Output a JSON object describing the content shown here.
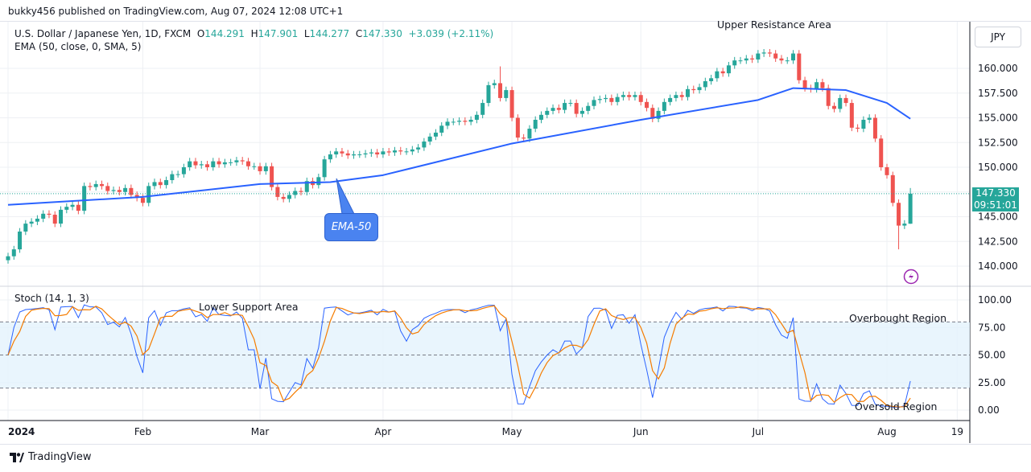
{
  "published": "bukky456 published on TradingView.com, Aug 07, 2024 12:08 UTC+1",
  "legend": {
    "symbol": "U.S. Dollar / Japanese Yen, 1D, FXCM",
    "open_label": "O",
    "open": "144.291",
    "high_label": "H",
    "high": "147.901",
    "low_label": "L",
    "low": "144.277",
    "close_label": "C",
    "close": "147.330",
    "change": "+3.039 (+2.11%)",
    "ema": "EMA (50, close, 0, SMA, 5)",
    "stoch": "Stoch (14, 1, 3)"
  },
  "currency": "JPY",
  "last_price": {
    "price": "147.330",
    "countdown": "09:51:01"
  },
  "annotations": {
    "upper": "Upper Resistance Area",
    "lower": "Lower Support Area",
    "overbought": "Overbought Region",
    "oversold": "Oversold Region",
    "ema_callout": "EMA-50"
  },
  "footer": "TradingView",
  "colors": {
    "up": "#26a69a",
    "down": "#ef5350",
    "ema": "#2962ff",
    "stoch_k": "#2962ff",
    "stoch_d": "#f57c00",
    "band": "#e3f2fd"
  },
  "chart_data": {
    "type": "candlestick",
    "price_axis": {
      "ticks": [
        "160.000",
        "157.500",
        "155.000",
        "152.500",
        "150.000",
        "147.500",
        "145.000",
        "142.500",
        "140.000"
      ],
      "range": [
        138.5,
        162.5
      ]
    },
    "stoch_axis": {
      "ticks": [
        "100.00",
        "75.00",
        "50.00",
        "25.00",
        "0.00"
      ],
      "levels": [
        80,
        50,
        20
      ]
    },
    "time_ticks": [
      {
        "label": "2024",
        "index": 0
      },
      {
        "label": "Feb",
        "index": 23
      },
      {
        "label": "Mar",
        "index": 43
      },
      {
        "label": "Apr",
        "index": 64
      },
      {
        "label": "May",
        "index": 86
      },
      {
        "label": "Jun",
        "index": 108
      },
      {
        "label": "Jul",
        "index": 128
      },
      {
        "label": "Aug",
        "index": 150
      },
      {
        "label": "19",
        "index": 162
      }
    ],
    "closes": [
      141.0,
      141.7,
      143.5,
      144.3,
      144.5,
      144.8,
      145.3,
      145.2,
      144.3,
      145.7,
      146.0,
      146.2,
      145.6,
      148.1,
      148.0,
      148.3,
      148.1,
      147.6,
      147.7,
      147.5,
      147.9,
      147.2,
      146.9,
      146.4,
      148.1,
      148.5,
      148.2,
      148.7,
      149.3,
      149.3,
      150.0,
      150.6,
      150.2,
      150.3,
      150.0,
      150.6,
      150.3,
      150.5,
      150.5,
      150.7,
      150.6,
      150.1,
      150.1,
      149.6,
      150.1,
      148.0,
      147.0,
      146.8,
      147.2,
      147.6,
      147.5,
      148.6,
      148.2,
      149.0,
      150.8,
      151.3,
      151.6,
      151.4,
      151.2,
      151.3,
      151.3,
      151.4,
      151.5,
      151.3,
      151.6,
      151.5,
      151.7,
      151.6,
      151.6,
      151.8,
      152.0,
      152.6,
      153.1,
      153.5,
      154.2,
      154.6,
      154.6,
      154.7,
      154.6,
      154.8,
      155.3,
      156.5,
      158.3,
      158.5,
      157.0,
      157.8,
      155.0,
      153.0,
      152.9,
      153.9,
      154.8,
      155.3,
      155.7,
      156.0,
      155.8,
      156.5,
      156.5,
      155.4,
      155.7,
      156.2,
      156.8,
      156.9,
      157.0,
      156.6,
      157.1,
      157.3,
      157.1,
      157.3,
      156.6,
      156.0,
      154.9,
      155.7,
      156.6,
      157.0,
      157.3,
      157.1,
      157.9,
      157.8,
      158.1,
      158.7,
      159.0,
      159.7,
      159.5,
      160.3,
      160.8,
      160.8,
      161.0,
      160.9,
      161.5,
      161.6,
      161.5,
      161.0,
      160.8,
      160.8,
      161.5,
      158.8,
      158.0,
      157.9,
      158.6,
      158.0,
      156.2,
      155.9,
      157.0,
      156.5,
      154.0,
      153.9,
      154.8,
      155.0,
      152.9,
      150.0,
      149.2,
      146.4,
      144.1,
      144.3,
      147.33
    ],
    "last_candle": {
      "open": 144.291,
      "high": 147.901,
      "low": 144.277,
      "close": 147.33
    },
    "notable_wicks": [
      {
        "index": 84,
        "high": 160.2
      },
      {
        "index": 152,
        "low": 141.7
      }
    ],
    "ema50": [
      [
        0,
        146.2
      ],
      [
        23,
        147.0
      ],
      [
        43,
        148.3
      ],
      [
        55,
        148.5
      ],
      [
        64,
        149.2
      ],
      [
        86,
        152.4
      ],
      [
        108,
        154.8
      ],
      [
        128,
        156.8
      ],
      [
        134,
        158.0
      ],
      [
        143,
        157.8
      ],
      [
        150,
        156.5
      ],
      [
        154,
        154.9
      ]
    ]
  }
}
